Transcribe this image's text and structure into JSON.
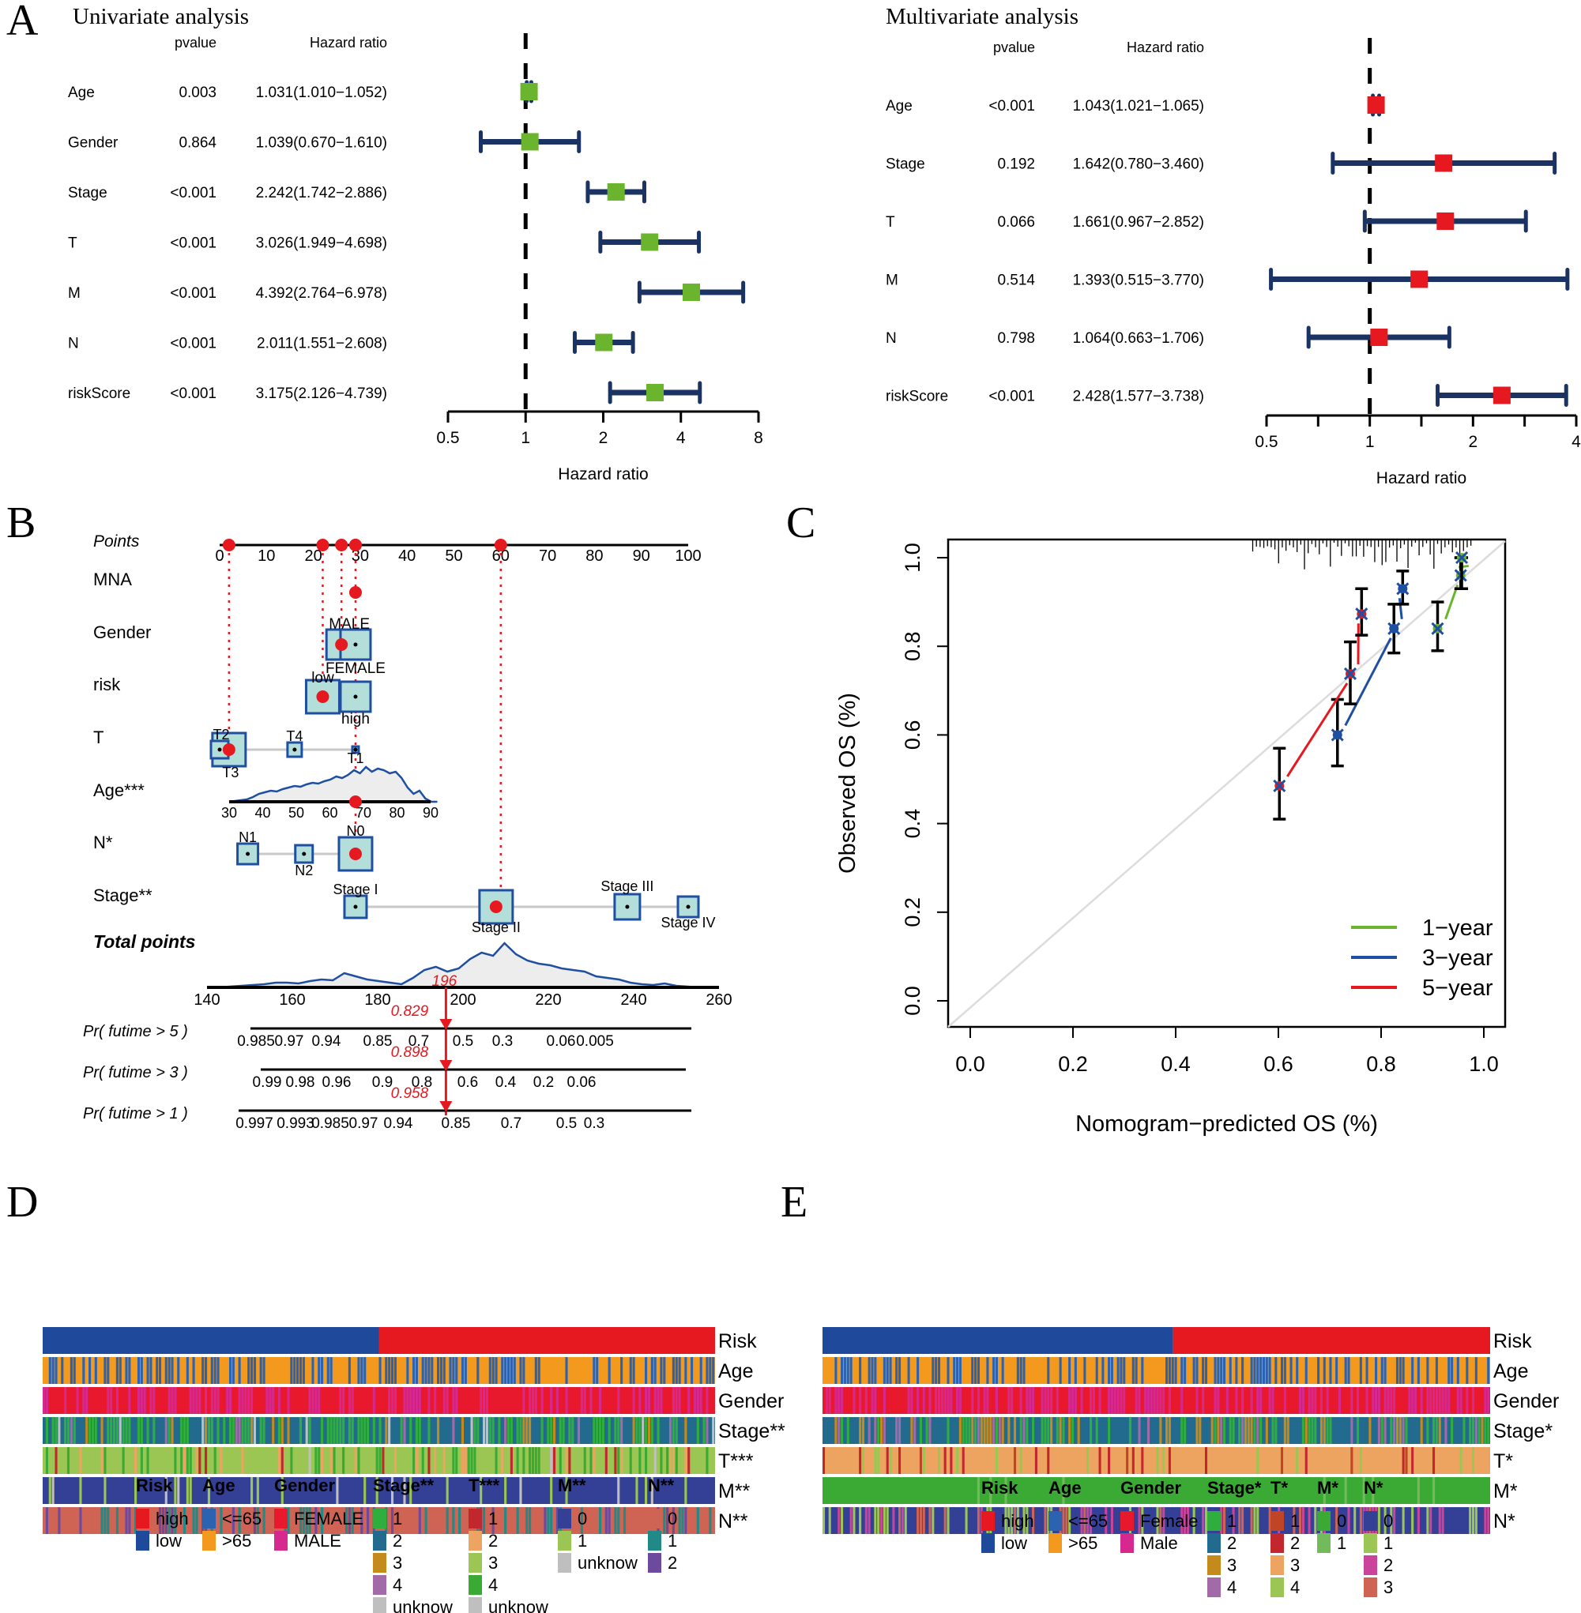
{
  "panel_labels": {
    "A": "A",
    "B": "B",
    "C": "C",
    "D": "D",
    "E": "E"
  },
  "chart_data": [
    {
      "id": "univariate",
      "type": "forest",
      "title": "Univariate analysis",
      "col_pvalue": "pvalue",
      "col_hr": "Hazard ratio",
      "xlabel": "Hazard ratio",
      "xscale": "log2",
      "xticks": [
        0.5,
        1,
        2,
        4,
        8
      ],
      "xlim": [
        0.5,
        8
      ],
      "marker_color": "#6bb52e",
      "rows": [
        {
          "name": "Age",
          "pvalue": "0.003",
          "hr_text": "1.031(1.010−1.052)",
          "hr": 1.031,
          "lo": 1.01,
          "hi": 1.052
        },
        {
          "name": "Gender",
          "pvalue": "0.864",
          "hr_text": "1.039(0.670−1.610)",
          "hr": 1.039,
          "lo": 0.67,
          "hi": 1.61
        },
        {
          "name": "Stage",
          "pvalue": "<0.001",
          "hr_text": "2.242(1.742−2.886)",
          "hr": 2.242,
          "lo": 1.742,
          "hi": 2.886
        },
        {
          "name": "T",
          "pvalue": "<0.001",
          "hr_text": "3.026(1.949−4.698)",
          "hr": 3.026,
          "lo": 1.949,
          "hi": 4.698
        },
        {
          "name": "M",
          "pvalue": "<0.001",
          "hr_text": "4.392(2.764−6.978)",
          "hr": 4.392,
          "lo": 2.764,
          "hi": 6.978
        },
        {
          "name": "N",
          "pvalue": "<0.001",
          "hr_text": "2.011(1.551−2.608)",
          "hr": 2.011,
          "lo": 1.551,
          "hi": 2.608
        },
        {
          "name": "riskScore",
          "pvalue": "<0.001",
          "hr_text": "3.175(2.126−4.739)",
          "hr": 3.175,
          "lo": 2.126,
          "hi": 4.739
        }
      ]
    },
    {
      "id": "multivariate",
      "type": "forest",
      "title": "Multivariate analysis",
      "col_pvalue": "pvalue",
      "col_hr": "Hazard ratio",
      "xlabel": "Hazard ratio",
      "xscale": "log2",
      "xticks": [
        0.5,
        1,
        2,
        4
      ],
      "xticks_minor": [
        0.707,
        1.414,
        2.828
      ],
      "xlim": [
        0.5,
        4
      ],
      "marker_color": "#e5191f",
      "rows": [
        {
          "name": "Age",
          "pvalue": "<0.001",
          "hr_text": "1.043(1.021−1.065)",
          "hr": 1.043,
          "lo": 1.021,
          "hi": 1.065
        },
        {
          "name": "Stage",
          "pvalue": "0.192",
          "hr_text": "1.642(0.780−3.460)",
          "hr": 1.642,
          "lo": 0.78,
          "hi": 3.46
        },
        {
          "name": "T",
          "pvalue": "0.066",
          "hr_text": "1.661(0.967−2.852)",
          "hr": 1.661,
          "lo": 0.967,
          "hi": 2.852
        },
        {
          "name": "M",
          "pvalue": "0.514",
          "hr_text": "1.393(0.515−3.770)",
          "hr": 1.393,
          "lo": 0.515,
          "hi": 3.77
        },
        {
          "name": "N",
          "pvalue": "0.798",
          "hr_text": "1.064(0.663−1.706)",
          "hr": 1.064,
          "lo": 0.663,
          "hi": 1.706
        },
        {
          "name": "riskScore",
          "pvalue": "<0.001",
          "hr_text": "2.428(1.577−3.738)",
          "hr": 2.428,
          "lo": 1.577,
          "hi": 3.738
        }
      ]
    },
    {
      "id": "nomogram",
      "type": "nomogram",
      "points_label": "Points",
      "points_ticks": [
        0,
        10,
        20,
        30,
        40,
        50,
        60,
        70,
        80,
        90,
        100
      ],
      "selected_points": [
        2,
        22,
        26,
        29,
        29,
        60
      ],
      "variables": [
        {
          "name": "MNA",
          "levels": [],
          "selected_point": 29
        },
        {
          "name": "Gender",
          "levels": [
            {
              "label": "MALE",
              "points": 26
            },
            {
              "label": "FEMALE",
              "points": 29
            }
          ],
          "selected_point": 26
        },
        {
          "name": "risk",
          "levels": [
            {
              "label": "low",
              "points": 22
            },
            {
              "label": "high",
              "points": 29
            }
          ],
          "selected_point": 22
        },
        {
          "name": "T",
          "levels": [
            {
              "label": "T2",
              "points": 0
            },
            {
              "label": "T3",
              "points": 2
            },
            {
              "label": "T4",
              "points": 16
            },
            {
              "label": "T1",
              "points": 29
            }
          ],
          "selected_point": 2
        },
        {
          "name": "Age***",
          "scale_ticks": [
            30,
            40,
            50,
            60,
            70,
            80,
            90
          ],
          "selected_value": 69
        },
        {
          "name": "N*",
          "levels": [
            {
              "label": "N1",
              "points": 6
            },
            {
              "label": "N2",
              "points": 18
            },
            {
              "label": "N0",
              "points": 29
            }
          ],
          "selected_point": 29
        },
        {
          "name": "Stage**",
          "levels": [
            {
              "label": "Stage I",
              "points": 29
            },
            {
              "label": "Stage II",
              "points": 59
            },
            {
              "label": "Stage III",
              "points": 87
            },
            {
              "label": "Stage IV",
              "points": 100
            }
          ],
          "selected_point": 59
        }
      ],
      "total_points_label": "Total points",
      "total_ticks": [
        140,
        160,
        180,
        200,
        220,
        240,
        260
      ],
      "total_selected": 196,
      "total_selected_label": "196",
      "probabilities": [
        {
          "label": "Pr( futime > 5 )",
          "value_label": "0.829",
          "ticks": [
            "0.985",
            "0.97",
            "0.94",
            "0.85",
            "0.7",
            "0.5",
            "0.3",
            "0.06",
            "0.005"
          ]
        },
        {
          "label": "Pr( futime > 3 )",
          "value_label": "0.898",
          "ticks": [
            "0.99",
            "0.98",
            "0.96",
            "0.9",
            "0.8",
            "0.6",
            "0.4",
            "0.2",
            "0.06"
          ]
        },
        {
          "label": "Pr( futime > 1 )",
          "value_label": "0.958",
          "ticks": [
            "0.997",
            "0.993",
            "0.985",
            "0.97",
            "0.94",
            "0.85",
            "0.7",
            "0.5",
            "0.3"
          ]
        }
      ]
    },
    {
      "id": "calibration",
      "type": "line",
      "xlabel": "Nomogram−predicted OS (%)",
      "ylabel": "Observed OS (%)",
      "xlim": [
        0,
        1
      ],
      "ylim": [
        0,
        1
      ],
      "xticks": [
        "0.0",
        "0.2",
        "0.4",
        "0.6",
        "0.8",
        "1.0"
      ],
      "yticks": [
        "0.0",
        "0.2",
        "0.4",
        "0.6",
        "0.8",
        "1.0"
      ],
      "legend_position": "bottom-right",
      "series": [
        {
          "name": "1-year",
          "label": "1−year",
          "color": "#6bb52e",
          "points": [
            [
              0.91,
              0.84
            ],
            [
              0.955,
              0.96
            ],
            [
              0.957,
              1.0
            ]
          ],
          "err": [
            [
              0.79,
              0.9
            ],
            [
              0.93,
              1.0
            ],
            [
              0.93,
              1.0
            ]
          ]
        },
        {
          "name": "3-year",
          "label": "3−year",
          "color": "#1f4fa0",
          "points": [
            [
              0.715,
              0.6
            ],
            [
              0.825,
              0.84
            ],
            [
              0.842,
              0.93
            ]
          ],
          "err": [
            [
              0.53,
              0.68
            ],
            [
              0.785,
              0.895
            ],
            [
              0.895,
              0.97
            ]
          ]
        },
        {
          "name": "5-year",
          "label": "5−year",
          "color": "#e5191f",
          "points": [
            [
              0.602,
              0.485
            ],
            [
              0.74,
              0.738
            ],
            [
              0.762,
              0.873
            ]
          ],
          "err": [
            [
              0.41,
              0.57
            ],
            [
              0.67,
              0.81
            ],
            [
              0.825,
              0.93
            ]
          ]
        }
      ]
    },
    {
      "id": "heatmap_D",
      "type": "heatmap",
      "rows": [
        "Risk",
        "Age",
        "Gender",
        "Stage**",
        "T***",
        "M**",
        "N**"
      ],
      "risk_split_fraction": 0.5,
      "legend": [
        {
          "title": "Risk",
          "items": [
            {
              "label": "high",
              "color": "#e5191f"
            },
            {
              "label": "low",
              "color": "#1f4a9c"
            }
          ]
        },
        {
          "title": "Age",
          "items": [
            {
              "label": "<=65",
              "color": "#2b63b0"
            },
            {
              "label": ">65",
              "color": "#f39a1e"
            }
          ]
        },
        {
          "title": "Gender",
          "items": [
            {
              "label": "FEMALE",
              "color": "#e8192c"
            },
            {
              "label": "MALE",
              "color": "#d6288f"
            }
          ]
        },
        {
          "title": "Stage**",
          "items": [
            {
              "label": "1",
              "color": "#2fad3f"
            },
            {
              "label": "2",
              "color": "#236b8e"
            },
            {
              "label": "3",
              "color": "#c48a1c"
            },
            {
              "label": "4",
              "color": "#a36aa8"
            },
            {
              "label": "unknow",
              "color": "#bfbfbf"
            }
          ]
        },
        {
          "title": "T***",
          "items": [
            {
              "label": "1",
              "color": "#c1272d"
            },
            {
              "label": "2",
              "color": "#eda461"
            },
            {
              "label": "3",
              "color": "#9cc653"
            },
            {
              "label": "4",
              "color": "#3aaa35"
            },
            {
              "label": "unknow",
              "color": "#bfbfbf"
            }
          ]
        },
        {
          "title": "M**",
          "items": [
            {
              "label": "0",
              "color": "#343f96"
            },
            {
              "label": "1",
              "color": "#9cc653"
            },
            {
              "label": "unknow",
              "color": "#bfbfbf"
            }
          ]
        },
        {
          "title": "N**",
          "items": [
            {
              "label": "0",
              "color": "#cf6354"
            },
            {
              "label": "1",
              "color": "#218a86"
            },
            {
              "label": "2",
              "color": "#6c4a9d"
            }
          ]
        }
      ]
    },
    {
      "id": "heatmap_E",
      "type": "heatmap",
      "rows": [
        "Risk",
        "Age",
        "Gender",
        "Stage*",
        "T*",
        "M*",
        "N*"
      ],
      "risk_split_fraction": 0.525,
      "legend": [
        {
          "title": "Risk",
          "items": [
            {
              "label": "high",
              "color": "#e5191f"
            },
            {
              "label": "low",
              "color": "#1f4a9c"
            }
          ]
        },
        {
          "title": "Age",
          "items": [
            {
              "label": "<=65",
              "color": "#2b63b0"
            },
            {
              "label": ">65",
              "color": "#f39a1e"
            }
          ]
        },
        {
          "title": "Gender",
          "items": [
            {
              "label": "Female",
              "color": "#e8192c"
            },
            {
              "label": "Male",
              "color": "#d6288f"
            }
          ]
        },
        {
          "title": "Stage*",
          "items": [
            {
              "label": "1",
              "color": "#2fad3f"
            },
            {
              "label": "2",
              "color": "#236b8e"
            },
            {
              "label": "3",
              "color": "#c48a1c"
            },
            {
              "label": "4",
              "color": "#a36aa8"
            }
          ]
        },
        {
          "title": "T*",
          "items": [
            {
              "label": "1",
              "color": "#c04426"
            },
            {
              "label": "2",
              "color": "#c1272d"
            },
            {
              "label": "3",
              "color": "#eda461"
            },
            {
              "label": "4",
              "color": "#9cc653"
            }
          ]
        },
        {
          "title": "M*",
          "items": [
            {
              "label": "0",
              "color": "#3aaa35"
            },
            {
              "label": "1",
              "color": "#72bb5a"
            }
          ]
        },
        {
          "title": "N*",
          "items": [
            {
              "label": "0",
              "color": "#343f96"
            },
            {
              "label": "1",
              "color": "#9cc653"
            },
            {
              "label": "2",
              "color": "#c9449a"
            },
            {
              "label": "3",
              "color": "#cf6354"
            }
          ]
        }
      ]
    }
  ]
}
